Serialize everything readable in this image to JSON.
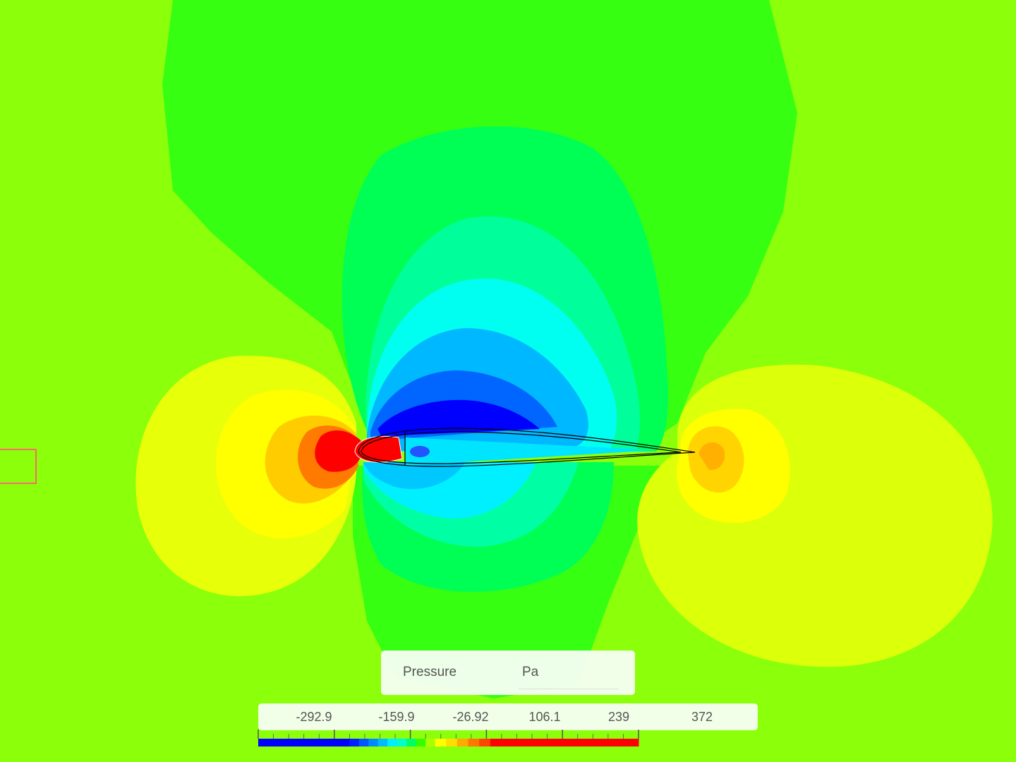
{
  "legend": {
    "quantity": "Pressure",
    "unit": "Pa",
    "ticks": [
      "-292.9",
      "-159.9",
      "-26.92",
      "106.1",
      "239",
      "372"
    ],
    "range": [
      -292.9,
      372
    ],
    "colormap": [
      "#0000ff",
      "#0022ff",
      "#0055ff",
      "#0088ff",
      "#00bbff",
      "#00eeff",
      "#00ffcc",
      "#00ff66",
      "#33ff00",
      "#aaff00",
      "#ffff00",
      "#ffdd00",
      "#ffaa00",
      "#ff7700",
      "#ff4400",
      "#ff0000"
    ]
  },
  "colors": {
    "background": "#8cff0a",
    "selection_box": "#ff6a6a"
  }
}
